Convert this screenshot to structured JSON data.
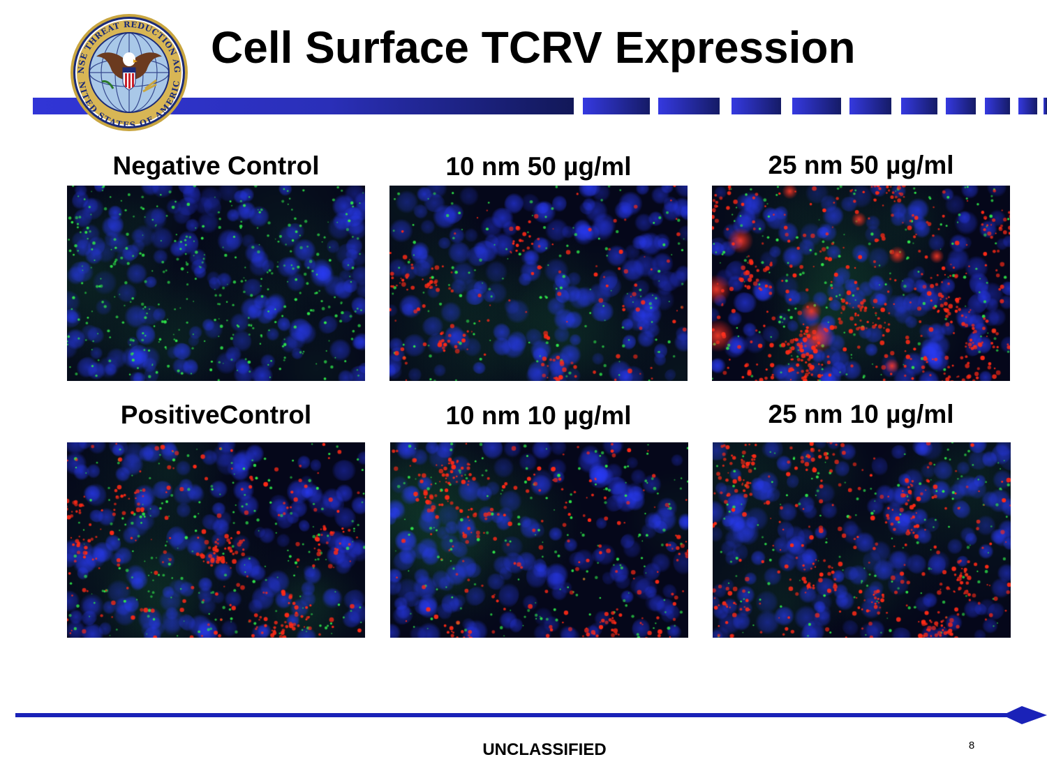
{
  "slide": {
    "title": "Cell Surface TCRV Expression",
    "classification": "UNCLASSIFIED",
    "page_number": "8"
  },
  "logo": {
    "top_text": "DEFENSE THREAT REDUCTION AGENCY",
    "bottom_text": "UNITED STATES OF AMERICA"
  },
  "colors": {
    "header_blue": "#2b2fd0",
    "header_navy": "#141a5e",
    "arrow_blue": "#1a22b8",
    "nucleus_blue": "#2a3cff",
    "marker_green": "#2fe84a",
    "marker_red": "#ff2a16"
  },
  "panels": [
    {
      "label": "Negative Control",
      "red_density": 0.0,
      "green_density": 1.0
    },
    {
      "label": "10 nm 50 µg/ml",
      "red_density": 0.35,
      "green_density": 0.35
    },
    {
      "label": "25 nm 50 µg/ml",
      "red_density": 1.0,
      "green_density": 0.45
    },
    {
      "label": "PositiveControl",
      "red_density": 0.6,
      "green_density": 0.55
    },
    {
      "label": "10 nm 10 µg/ml",
      "red_density": 0.55,
      "green_density": 0.45
    },
    {
      "label": "25 nm 10 µg/ml",
      "red_density": 0.75,
      "green_density": 0.4
    }
  ]
}
